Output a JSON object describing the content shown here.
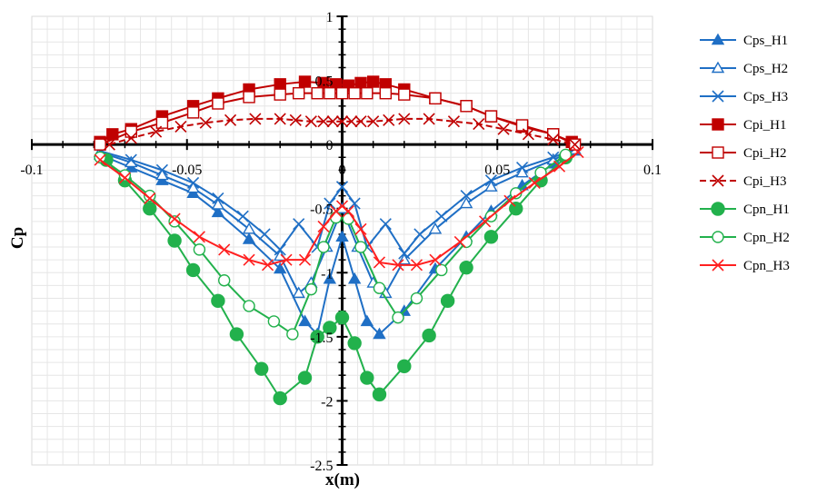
{
  "chart_data": {
    "type": "line",
    "title": "",
    "xlabel": "x(m)",
    "ylabel": "Cp",
    "xlim": [
      -0.1,
      0.1
    ],
    "ylim": [
      -2.5,
      1
    ],
    "x_ticks": [
      "-0.1",
      "-0.05",
      "0",
      "0.05",
      "0.1"
    ],
    "y_ticks": [
      "1",
      "0.5",
      "0",
      "-0.5",
      "-1",
      "-1.5",
      "-2",
      "-2.5"
    ],
    "grid": true,
    "legend_position": "right",
    "series": [
      {
        "name": "Cps_H1",
        "color": "#1F6FC5",
        "marker": "triangle-filled",
        "dash": "solid",
        "x": [
          -0.078,
          -0.068,
          -0.058,
          -0.048,
          -0.04,
          -0.03,
          -0.02,
          -0.012,
          -0.008,
          -0.004,
          0,
          0.004,
          0.008,
          0.012,
          0.02,
          0.03,
          0.04,
          0.048,
          0.058,
          0.068,
          0.075
        ],
        "y": [
          -0.08,
          -0.18,
          -0.28,
          -0.38,
          -0.53,
          -0.74,
          -0.97,
          -1.38,
          -1.48,
          -1.05,
          -0.72,
          -1.05,
          -1.38,
          -1.48,
          -1.3,
          -0.97,
          -0.72,
          -0.52,
          -0.32,
          -0.15,
          -0.05
        ]
      },
      {
        "name": "Cps_H2",
        "color": "#1F6FC5",
        "marker": "triangle-open",
        "dash": "solid",
        "x": [
          -0.078,
          -0.068,
          -0.058,
          -0.048,
          -0.04,
          -0.03,
          -0.02,
          -0.014,
          -0.01,
          -0.005,
          0,
          0.005,
          0.01,
          0.014,
          0.02,
          0.03,
          0.04,
          0.048,
          0.058,
          0.068,
          0.075
        ],
        "y": [
          -0.06,
          -0.14,
          -0.24,
          -0.34,
          -0.47,
          -0.66,
          -0.87,
          -1.16,
          -1.08,
          -0.8,
          -0.5,
          -0.8,
          -1.08,
          -1.16,
          -0.9,
          -0.66,
          -0.46,
          -0.33,
          -0.22,
          -0.12,
          -0.04
        ]
      },
      {
        "name": "Cps_H3",
        "color": "#1F6FC5",
        "marker": "x",
        "dash": "solid",
        "x": [
          -0.078,
          -0.068,
          -0.058,
          -0.048,
          -0.04,
          -0.032,
          -0.025,
          -0.02,
          -0.014,
          -0.008,
          -0.004,
          0,
          0.004,
          0.008,
          0.014,
          0.02,
          0.025,
          0.032,
          0.04,
          0.048,
          0.058,
          0.068,
          0.075
        ],
        "y": [
          -0.05,
          -0.12,
          -0.2,
          -0.3,
          -0.42,
          -0.56,
          -0.7,
          -0.82,
          -0.62,
          -0.8,
          -0.46,
          -0.33,
          -0.46,
          -0.8,
          -0.62,
          -0.85,
          -0.7,
          -0.56,
          -0.4,
          -0.28,
          -0.18,
          -0.1,
          -0.03
        ]
      },
      {
        "name": "Cpi_H1",
        "color": "#C00000",
        "marker": "square-filled",
        "dash": "solid",
        "x": [
          -0.078,
          -0.074,
          -0.068,
          -0.058,
          -0.048,
          -0.04,
          -0.03,
          -0.02,
          -0.012,
          -0.006,
          -0.002,
          0.002,
          0.006,
          0.01,
          0.014,
          0.02,
          0.03,
          0.04,
          0.048,
          0.058,
          0.068,
          0.074
        ],
        "y": [
          0.02,
          0.08,
          0.12,
          0.22,
          0.3,
          0.36,
          0.43,
          0.47,
          0.49,
          0.48,
          0.47,
          0.46,
          0.48,
          0.49,
          0.47,
          0.43,
          0.36,
          0.3,
          0.22,
          0.14,
          0.08,
          0.02
        ]
      },
      {
        "name": "Cpi_H2",
        "color": "#C00000",
        "marker": "square-open",
        "dash": "solid",
        "x": [
          -0.078,
          -0.068,
          -0.058,
          -0.048,
          -0.04,
          -0.03,
          -0.02,
          -0.014,
          -0.008,
          -0.004,
          0,
          0.004,
          0.008,
          0.014,
          0.02,
          0.03,
          0.04,
          0.048,
          0.058,
          0.068,
          0.075
        ],
        "y": [
          0.0,
          0.1,
          0.17,
          0.25,
          0.32,
          0.37,
          0.39,
          0.4,
          0.4,
          0.4,
          0.4,
          0.4,
          0.4,
          0.4,
          0.39,
          0.36,
          0.3,
          0.22,
          0.15,
          0.08,
          0.0
        ]
      },
      {
        "name": "Cpi_H3",
        "color": "#C00000",
        "marker": "x",
        "dash": "dashed",
        "x": [
          -0.075,
          -0.068,
          -0.06,
          -0.052,
          -0.044,
          -0.036,
          -0.028,
          -0.02,
          -0.015,
          -0.01,
          -0.006,
          -0.003,
          0,
          0.003,
          0.006,
          0.01,
          0.015,
          0.02,
          0.028,
          0.036,
          0.044,
          0.052,
          0.06,
          0.068,
          0.075
        ],
        "y": [
          0.0,
          0.05,
          0.1,
          0.14,
          0.17,
          0.19,
          0.2,
          0.2,
          0.19,
          0.18,
          0.18,
          0.18,
          0.18,
          0.18,
          0.18,
          0.18,
          0.19,
          0.2,
          0.2,
          0.18,
          0.16,
          0.12,
          0.08,
          0.04,
          0.0
        ]
      },
      {
        "name": "Cpn_H1",
        "color": "#22B14C",
        "marker": "circle-filled",
        "dash": "solid",
        "x": [
          -0.076,
          -0.07,
          -0.062,
          -0.054,
          -0.048,
          -0.04,
          -0.034,
          -0.026,
          -0.02,
          -0.012,
          -0.008,
          -0.004,
          0,
          0.004,
          0.008,
          0.012,
          0.02,
          0.028,
          0.034,
          0.04,
          0.048,
          0.056,
          0.064,
          0.072
        ],
        "y": [
          -0.12,
          -0.28,
          -0.5,
          -0.75,
          -0.98,
          -1.22,
          -1.48,
          -1.75,
          -1.98,
          -1.82,
          -1.5,
          -1.43,
          -1.35,
          -1.55,
          -1.82,
          -1.95,
          -1.73,
          -1.49,
          -1.22,
          -0.96,
          -0.72,
          -0.5,
          -0.28,
          -0.1
        ]
      },
      {
        "name": "Cpn_H2",
        "color": "#22B14C",
        "marker": "circle-open",
        "dash": "solid",
        "x": [
          -0.078,
          -0.07,
          -0.062,
          -0.054,
          -0.046,
          -0.038,
          -0.03,
          -0.022,
          -0.016,
          -0.01,
          -0.006,
          -0.002,
          0.002,
          0.006,
          0.012,
          0.018,
          0.024,
          0.032,
          0.04,
          0.048,
          0.056,
          0.064,
          0.072
        ],
        "y": [
          -0.1,
          -0.24,
          -0.4,
          -0.6,
          -0.82,
          -1.06,
          -1.26,
          -1.38,
          -1.48,
          -1.13,
          -0.8,
          -0.57,
          -0.58,
          -0.8,
          -1.12,
          -1.35,
          -1.2,
          -0.98,
          -0.76,
          -0.56,
          -0.38,
          -0.22,
          -0.08
        ]
      },
      {
        "name": "Cpn_H3",
        "color": "#FF2020",
        "marker": "x",
        "dash": "solid",
        "x": [
          -0.078,
          -0.07,
          -0.062,
          -0.054,
          -0.046,
          -0.038,
          -0.03,
          -0.024,
          -0.018,
          -0.012,
          -0.006,
          -0.002,
          0,
          0.002,
          0.006,
          0.012,
          0.018,
          0.024,
          0.03,
          0.038,
          0.046,
          0.054,
          0.062,
          0.07,
          0.076
        ],
        "y": [
          -0.12,
          -0.26,
          -0.42,
          -0.58,
          -0.72,
          -0.82,
          -0.9,
          -0.94,
          -0.9,
          -0.9,
          -0.64,
          -0.52,
          -0.48,
          -0.52,
          -0.66,
          -0.92,
          -0.94,
          -0.94,
          -0.9,
          -0.76,
          -0.6,
          -0.44,
          -0.3,
          -0.17,
          -0.06
        ]
      }
    ]
  }
}
